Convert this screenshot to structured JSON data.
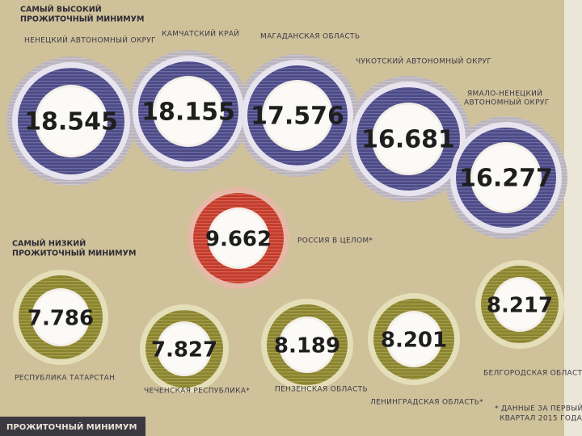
{
  "high": {
    "title": [
      "САМЫЙ ВЫСОКИЙ",
      "ПРОЖИТОЧНЫЙ МИНИМУМ"
    ],
    "items": [
      {
        "label": [
          "НЕНЕЦКИЙ АВТОНОМНЫЙ ОКРУГ"
        ],
        "value": "18.545"
      },
      {
        "label": [
          "КАМЧАТСКИЙ КРАЙ"
        ],
        "value": "18.155"
      },
      {
        "label": [
          "МАГАДАНСКАЯ ОБЛАСТЬ"
        ],
        "value": "17.576"
      },
      {
        "label": [
          "ЧУКОТСКИЙ АВТОНОМНЫЙ ОКРУГ"
        ],
        "value": "16.681"
      },
      {
        "label": [
          "ЯМАЛО-НЕНЕЦКИЙ",
          "АВТОНОМНЫЙ ОКРУГ"
        ],
        "value": "16.277"
      }
    ]
  },
  "russia": {
    "label": "РОССИЯ В ЦЕЛОМ*",
    "value": "9.662"
  },
  "low": {
    "title": [
      "САМЫЙ НИЗКИЙ",
      "ПРОЖИТОЧНЫЙ МИНИМУМ"
    ],
    "items": [
      {
        "label": "РЕСПУБЛИКА ТАТАРСТАН",
        "value": "7.786"
      },
      {
        "label": "ЧЕЧЕНСКАЯ РЕСПУБЛИКА*",
        "value": "7.827"
      },
      {
        "label": "ПЕНЗЕНСКАЯ ОБЛАСТЬ",
        "value": "8.189"
      },
      {
        "label": "ЛЕНИНГРАДСКАЯ ОБЛАСТЬ*",
        "value": "8.201"
      },
      {
        "label": "БЕЛГОРОДСКАЯ ОБЛАСТЬ*",
        "value": "8.217"
      }
    ]
  },
  "footnote": [
    "* ДАННЫЕ ЗА ПЕРВЫЙ",
    "КВАРТАЛ 2015 ГОДА"
  ],
  "bottom_heading": "ПРОЖИТОЧНЫЙ МИНИМУМ"
}
